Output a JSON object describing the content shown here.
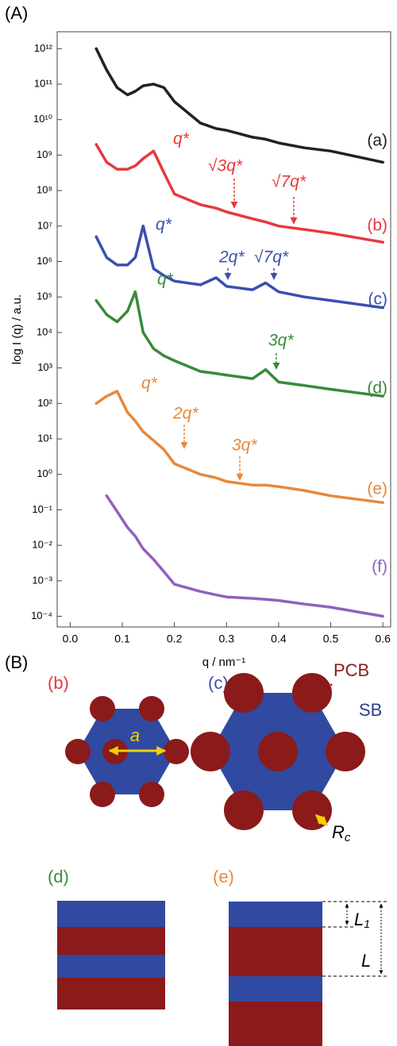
{
  "chart_data": {
    "type": "line",
    "panel_label": "(A)",
    "ylabel": "log I (q) / a.u.",
    "xlabel": "q / nm⁻¹",
    "log_y": true,
    "x": [
      0.05,
      0.07,
      0.09,
      0.11,
      0.125,
      0.14,
      0.16,
      0.18,
      0.2,
      0.25,
      0.28,
      0.3,
      0.35,
      0.375,
      0.4,
      0.45,
      0.5,
      0.6
    ],
    "xlim": [
      -0.025,
      0.615
    ],
    "xticks": [
      {
        "value": 0,
        "label": "0.0"
      },
      0.1,
      0.2,
      0.3,
      0.4,
      0.5,
      0.6
    ],
    "ylim": [
      5e-05,
      3000000000000.0
    ],
    "yticks": [
      {
        "value": 1000000000000.0,
        "label": "10¹²"
      },
      {
        "value": 100000000000.0,
        "label": "10¹¹"
      },
      {
        "value": 10000000000.0,
        "label": "10¹⁰"
      },
      {
        "value": 1000000000.0,
        "label": "10⁹"
      },
      {
        "value": 100000000.0,
        "label": "10⁸"
      },
      {
        "value": 10000000.0,
        "label": "10⁷"
      },
      {
        "value": 1000000.0,
        "label": "10⁶"
      },
      {
        "value": 100000.0,
        "label": "10⁵"
      },
      {
        "value": 10000.0,
        "label": "10⁴"
      },
      {
        "value": 1000.0,
        "label": "10³"
      },
      {
        "value": 100,
        "label": "10²"
      },
      {
        "value": 10,
        "label": "10¹"
      },
      {
        "value": 1,
        "label": "10⁰"
      },
      {
        "value": 0.1,
        "label": "10⁻¹"
      },
      {
        "value": 0.01,
        "label": "10⁻²"
      },
      {
        "value": 0.001,
        "label": "10⁻³"
      },
      {
        "value": 0.0001,
        "label": "10⁻⁴"
      }
    ],
    "series": [
      {
        "name": "(a)",
        "color": "#222222",
        "values": [
          1000000000000.0,
          250000000000.0,
          80000000000.0,
          50000000000.0,
          63000000000.0,
          90000000000.0,
          100000000000.0,
          80000000000.0,
          32000000000.0,
          8000000000.0,
          5600000000.0,
          5000000000.0,
          3200000000.0,
          2800000000.0,
          2200000000.0,
          1600000000.0,
          1300000000.0,
          630000000.0
        ]
      },
      {
        "name": "(b)",
        "color": "#e8383d",
        "values": [
          2000000000.0,
          630000000.0,
          400000000.0,
          400000000.0,
          500000000.0,
          800000000.0,
          1300000000.0,
          320000000.0,
          80000000.0,
          40000000.0,
          32000000.0,
          25000000.0,
          16000000.0,
          13000000.0,
          10000000.0,
          8000000.0,
          6300000.0,
          3500000.0
        ]
      },
      {
        "name": "(c)",
        "color": "#3a4fb0",
        "values": [
          5000000.0,
          1300000.0,
          800000.0,
          800000.0,
          1300000.0,
          10000000.0,
          630000.0,
          400000.0,
          280000.0,
          220000.0,
          350000.0,
          200000.0,
          160000.0,
          250000.0,
          140000.0,
          100000.0,
          80000.0,
          50000.0
        ]
      },
      {
        "name": "(d)",
        "color": "#3a8a3a",
        "values": [
          80000.0,
          32000.0,
          20000.0,
          40000.0,
          140000.0,
          10000.0,
          3500,
          2200,
          1600,
          800,
          700,
          630,
          500,
          900,
          400,
          320,
          250,
          160
        ]
      },
      {
        "name": "(e)",
        "color": "#e8883a",
        "values": [
          100,
          160,
          220,
          56,
          32,
          16,
          9,
          5,
          2,
          1,
          0.8,
          0.63,
          0.5,
          0.5,
          0.45,
          0.35,
          0.25,
          0.16
        ]
      },
      {
        "name": "(f)",
        "color": "#9060c0",
        "values": [
          null,
          0.25,
          0.09,
          0.032,
          0.018,
          0.008,
          0.004,
          0.0018,
          0.0008,
          0.0005,
          0.0004,
          0.00035,
          0.00032,
          0.0003,
          0.00028,
          0.00022,
          0.00018,
          0.0001
        ]
      }
    ],
    "annotations": [
      {
        "text": "q*",
        "color": "#e8383d"
      },
      {
        "text": "√3q*",
        "color": "#e8383d"
      },
      {
        "text": "√7q*",
        "color": "#e8383d"
      },
      {
        "text": "q*",
        "color": "#3a4fb0"
      },
      {
        "text": "2q*",
        "color": "#3a4fb0"
      },
      {
        "text": "√7q*",
        "color": "#3a4fb0"
      },
      {
        "text": "q*",
        "color": "#3a8a3a"
      },
      {
        "text": "3q*",
        "color": "#3a8a3a"
      },
      {
        "text": "q*",
        "color": "#e8883a"
      },
      {
        "text": "2q*",
        "color": "#e8883a"
      },
      {
        "text": "3q*",
        "color": "#e8883a"
      }
    ]
  },
  "diagram": {
    "label": "(B)",
    "b_label": "(b)",
    "c_label": "(c)",
    "pcb": "PCB",
    "sb": "SB",
    "a": "a",
    "rc": {
      "base": "R",
      "sub": "c"
    },
    "d_label": "(d)",
    "e_label": "(e)",
    "l1": {
      "base": "L",
      "sub": "1"
    },
    "l": "L"
  }
}
